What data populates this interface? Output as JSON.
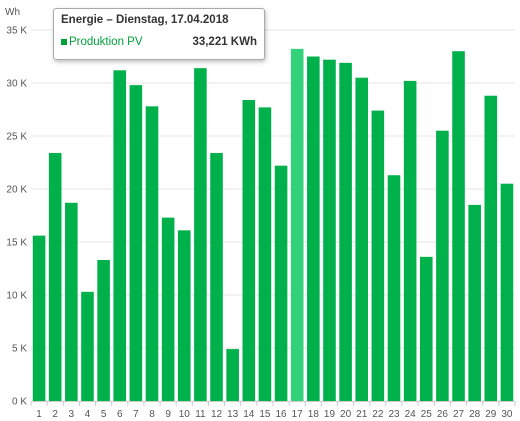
{
  "chart_data": {
    "type": "bar",
    "y_unit_label": "Wh",
    "categories": [
      "1",
      "2",
      "3",
      "4",
      "5",
      "6",
      "7",
      "8",
      "9",
      "10",
      "11",
      "12",
      "13",
      "14",
      "15",
      "16",
      "17",
      "18",
      "19",
      "20",
      "21",
      "22",
      "23",
      "24",
      "25",
      "26",
      "27",
      "28",
      "29",
      "30"
    ],
    "series": [
      {
        "name": "Produktion PV",
        "values": [
          15600,
          23400,
          18700,
          10300,
          13300,
          31200,
          29800,
          27800,
          17300,
          16100,
          31400,
          23400,
          4900,
          28400,
          27700,
          22200,
          33221,
          32500,
          32200,
          31900,
          30500,
          27400,
          21300,
          30200,
          13600,
          25500,
          33000,
          18500,
          28800,
          20500
        ]
      }
    ],
    "ylim": [
      0,
      35000
    ],
    "y_ticks": [
      0,
      5000,
      10000,
      15000,
      20000,
      25000,
      30000,
      35000
    ],
    "y_tick_labels": [
      "0 K",
      "5 K",
      "10 K",
      "15 K",
      "20 K",
      "25 K",
      "30 K",
      "35 K"
    ],
    "grid": true,
    "highlighted_category": "17",
    "colors": {
      "bar": "#00b04a",
      "bar_highlight": "#33d17a",
      "grid": "#e6e6e6",
      "axis": "#cccccc"
    }
  },
  "tooltip": {
    "title": "Energie – Dienstag, 17.04.2018",
    "series_name": "Produktion PV",
    "value": "33,221 KWh"
  }
}
